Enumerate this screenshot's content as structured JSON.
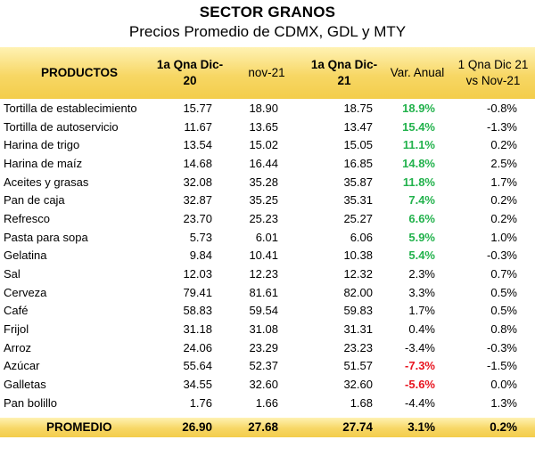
{
  "title": "SECTOR GRANOS",
  "subtitle": "Precios Promedio de CDMX, GDL y MTY",
  "headers": {
    "products": "PRODUCTOS",
    "col1": "1a Qna Dic-20",
    "col2": "nov-21",
    "col3": "1a Qna Dic-21",
    "col4": "Var. Anual",
    "col5": "1 Qna Dic 21 vs Nov-21"
  },
  "rows": [
    {
      "name": "Tortilla de establecimiento",
      "c1": "15.77",
      "c2": "18.90",
      "c3": "18.75",
      "c4": "18.9%",
      "c5": "-0.8%"
    },
    {
      "name": "Tortilla de autoservicio",
      "c1": "11.67",
      "c2": "13.65",
      "c3": "13.47",
      "c4": "15.4%",
      "c5": "-1.3%"
    },
    {
      "name": "Harina de trigo",
      "c1": "13.54",
      "c2": "15.02",
      "c3": "15.05",
      "c4": "11.1%",
      "c5": "0.2%"
    },
    {
      "name": "Harina de maíz",
      "c1": "14.68",
      "c2": "16.44",
      "c3": "16.85",
      "c4": "14.8%",
      "c5": "2.5%"
    },
    {
      "name": "Aceites y grasas",
      "c1": "32.08",
      "c2": "35.28",
      "c3": "35.87",
      "c4": "11.8%",
      "c5": "1.7%"
    },
    {
      "name": "Pan de caja",
      "c1": "32.87",
      "c2": "35.25",
      "c3": "35.31",
      "c4": "7.4%",
      "c5": "0.2%"
    },
    {
      "name": "Refresco",
      "c1": "23.70",
      "c2": "25.23",
      "c3": "25.27",
      "c4": "6.6%",
      "c5": "0.2%"
    },
    {
      "name": "Pasta para sopa",
      "c1": "5.73",
      "c2": "6.01",
      "c3": "6.06",
      "c4": "5.9%",
      "c5": "1.0%"
    },
    {
      "name": "Gelatina",
      "c1": "9.84",
      "c2": "10.41",
      "c3": "10.38",
      "c4": "5.4%",
      "c5": "-0.3%"
    },
    {
      "name": "Sal",
      "c1": "12.03",
      "c2": "12.23",
      "c3": "12.32",
      "c4": "2.3%",
      "c5": "0.7%"
    },
    {
      "name": "Cerveza",
      "c1": "79.41",
      "c2": "81.61",
      "c3": "82.00",
      "c4": "3.3%",
      "c5": "0.5%"
    },
    {
      "name": "Café",
      "c1": "58.83",
      "c2": "59.54",
      "c3": "59.83",
      "c4": "1.7%",
      "c5": "0.5%"
    },
    {
      "name": "Frijol",
      "c1": "31.18",
      "c2": "31.08",
      "c3": "31.31",
      "c4": "0.4%",
      "c5": "0.8%"
    },
    {
      "name": "Arroz",
      "c1": "24.06",
      "c2": "23.29",
      "c3": "23.23",
      "c4": "-3.4%",
      "c5": "-0.3%"
    },
    {
      "name": "Azúcar",
      "c1": "55.64",
      "c2": "52.37",
      "c3": "51.57",
      "c4": "-7.3%",
      "c5": "-1.5%"
    },
    {
      "name": "Galletas",
      "c1": "34.55",
      "c2": "32.60",
      "c3": "32.60",
      "c4": "-5.6%",
      "c5": "0.0%"
    },
    {
      "name": "Pan bolillo",
      "c1": "1.76",
      "c2": "1.66",
      "c3": "1.68",
      "c4": "-4.4%",
      "c5": "1.3%"
    }
  ],
  "highlight": {
    "positive_color": "#22b24c",
    "negative_color": "#e8141f",
    "header_color": "#f3cd4b"
  },
  "footer": {
    "name": "PROMEDIO",
    "c1": "26.90",
    "c2": "27.68",
    "c3": "27.74",
    "c4": "3.1%",
    "c5": "0.2%"
  }
}
